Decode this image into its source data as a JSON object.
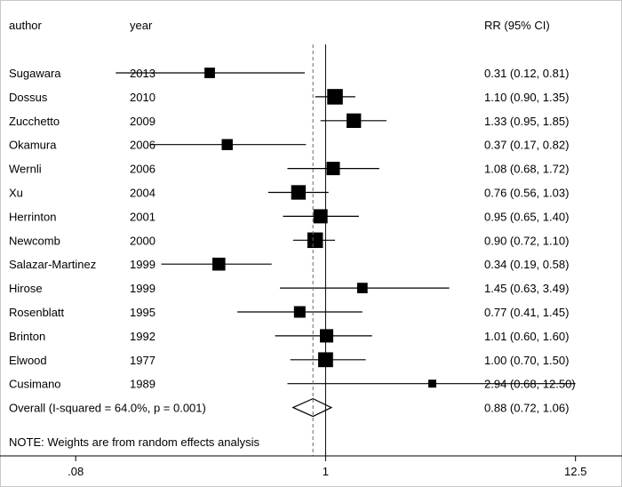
{
  "chart_data": {
    "type": "forest",
    "headers": {
      "author": "author",
      "year": "year",
      "effect": "RR (95% CI)"
    },
    "x_scale": "log",
    "xlim": [
      0.04,
      20
    ],
    "xticks": [
      {
        "value": 0.08,
        "label": ".08"
      },
      {
        "value": 1,
        "label": "1"
      },
      {
        "value": 12.5,
        "label": "12.5"
      }
    ],
    "null_line": 1,
    "pooled_line": 0.88,
    "studies": [
      {
        "author": "Sugawara",
        "year": "2013",
        "rr": 0.31,
        "lo": 0.12,
        "hi": 0.81,
        "ci_text": "0.31 (0.12, 0.81)",
        "weight": 3
      },
      {
        "author": "Dossus",
        "year": "2010",
        "rr": 1.1,
        "lo": 0.9,
        "hi": 1.35,
        "ci_text": "1.10 (0.90, 1.35)",
        "weight": 9
      },
      {
        "author": "Zucchetto",
        "year": "2009",
        "rr": 1.33,
        "lo": 0.95,
        "hi": 1.85,
        "ci_text": "1.33 (0.95, 1.85)",
        "weight": 7.5
      },
      {
        "author": "Okamura",
        "year": "2006",
        "rr": 0.37,
        "lo": 0.17,
        "hi": 0.82,
        "ci_text": "0.37 (0.17, 0.82)",
        "weight": 3.5
      },
      {
        "author": "Wernli",
        "year": "2006",
        "rr": 1.08,
        "lo": 0.68,
        "hi": 1.72,
        "ci_text": "1.08 (0.68, 1.72)",
        "weight": 6
      },
      {
        "author": "Xu",
        "year": "2004",
        "rr": 0.76,
        "lo": 0.56,
        "hi": 1.03,
        "ci_text": "0.76 (0.56, 1.03)",
        "weight": 7.5
      },
      {
        "author": "Herrinton",
        "year": "2001",
        "rr": 0.95,
        "lo": 0.65,
        "hi": 1.4,
        "ci_text": "0.95 (0.65, 1.40)",
        "weight": 7
      },
      {
        "author": "Newcomb",
        "year": "2000",
        "rr": 0.9,
        "lo": 0.72,
        "hi": 1.1,
        "ci_text": "0.90 (0.72, 1.10)",
        "weight": 9
      },
      {
        "author": "Salazar-Martinez",
        "year": "1999",
        "rr": 0.34,
        "lo": 0.19,
        "hi": 0.58,
        "ci_text": "0.34 (0.19, 0.58)",
        "weight": 5.5
      },
      {
        "author": "Hirose",
        "year": "1999",
        "rr": 1.45,
        "lo": 0.63,
        "hi": 3.49,
        "ci_text": "1.45 (0.63, 3.49)",
        "weight": 3
      },
      {
        "author": "Rosenblatt",
        "year": "1995",
        "rr": 0.77,
        "lo": 0.41,
        "hi": 1.45,
        "ci_text": "0.77 (0.41, 1.45)",
        "weight": 4
      },
      {
        "author": "Brinton",
        "year": "1992",
        "rr": 1.01,
        "lo": 0.6,
        "hi": 1.6,
        "ci_text": "1.01 (0.60, 1.60)",
        "weight": 6
      },
      {
        "author": "Elwood",
        "year": "1977",
        "rr": 1.0,
        "lo": 0.7,
        "hi": 1.5,
        "ci_text": "1.00 (0.70, 1.50)",
        "weight": 8
      },
      {
        "author": "Cusimano",
        "year": "1989",
        "rr": 2.94,
        "lo": 0.68,
        "hi": 12.5,
        "ci_text": "2.94 (0.68, 12.50)",
        "weight": 1.2
      }
    ],
    "overall": {
      "label": "Overall  (I-squared = 64.0%, p = 0.001)",
      "rr": 0.88,
      "lo": 0.72,
      "hi": 1.06,
      "ci_text": "0.88 (0.72, 1.06)"
    },
    "note": "NOTE: Weights are from random effects analysis"
  }
}
